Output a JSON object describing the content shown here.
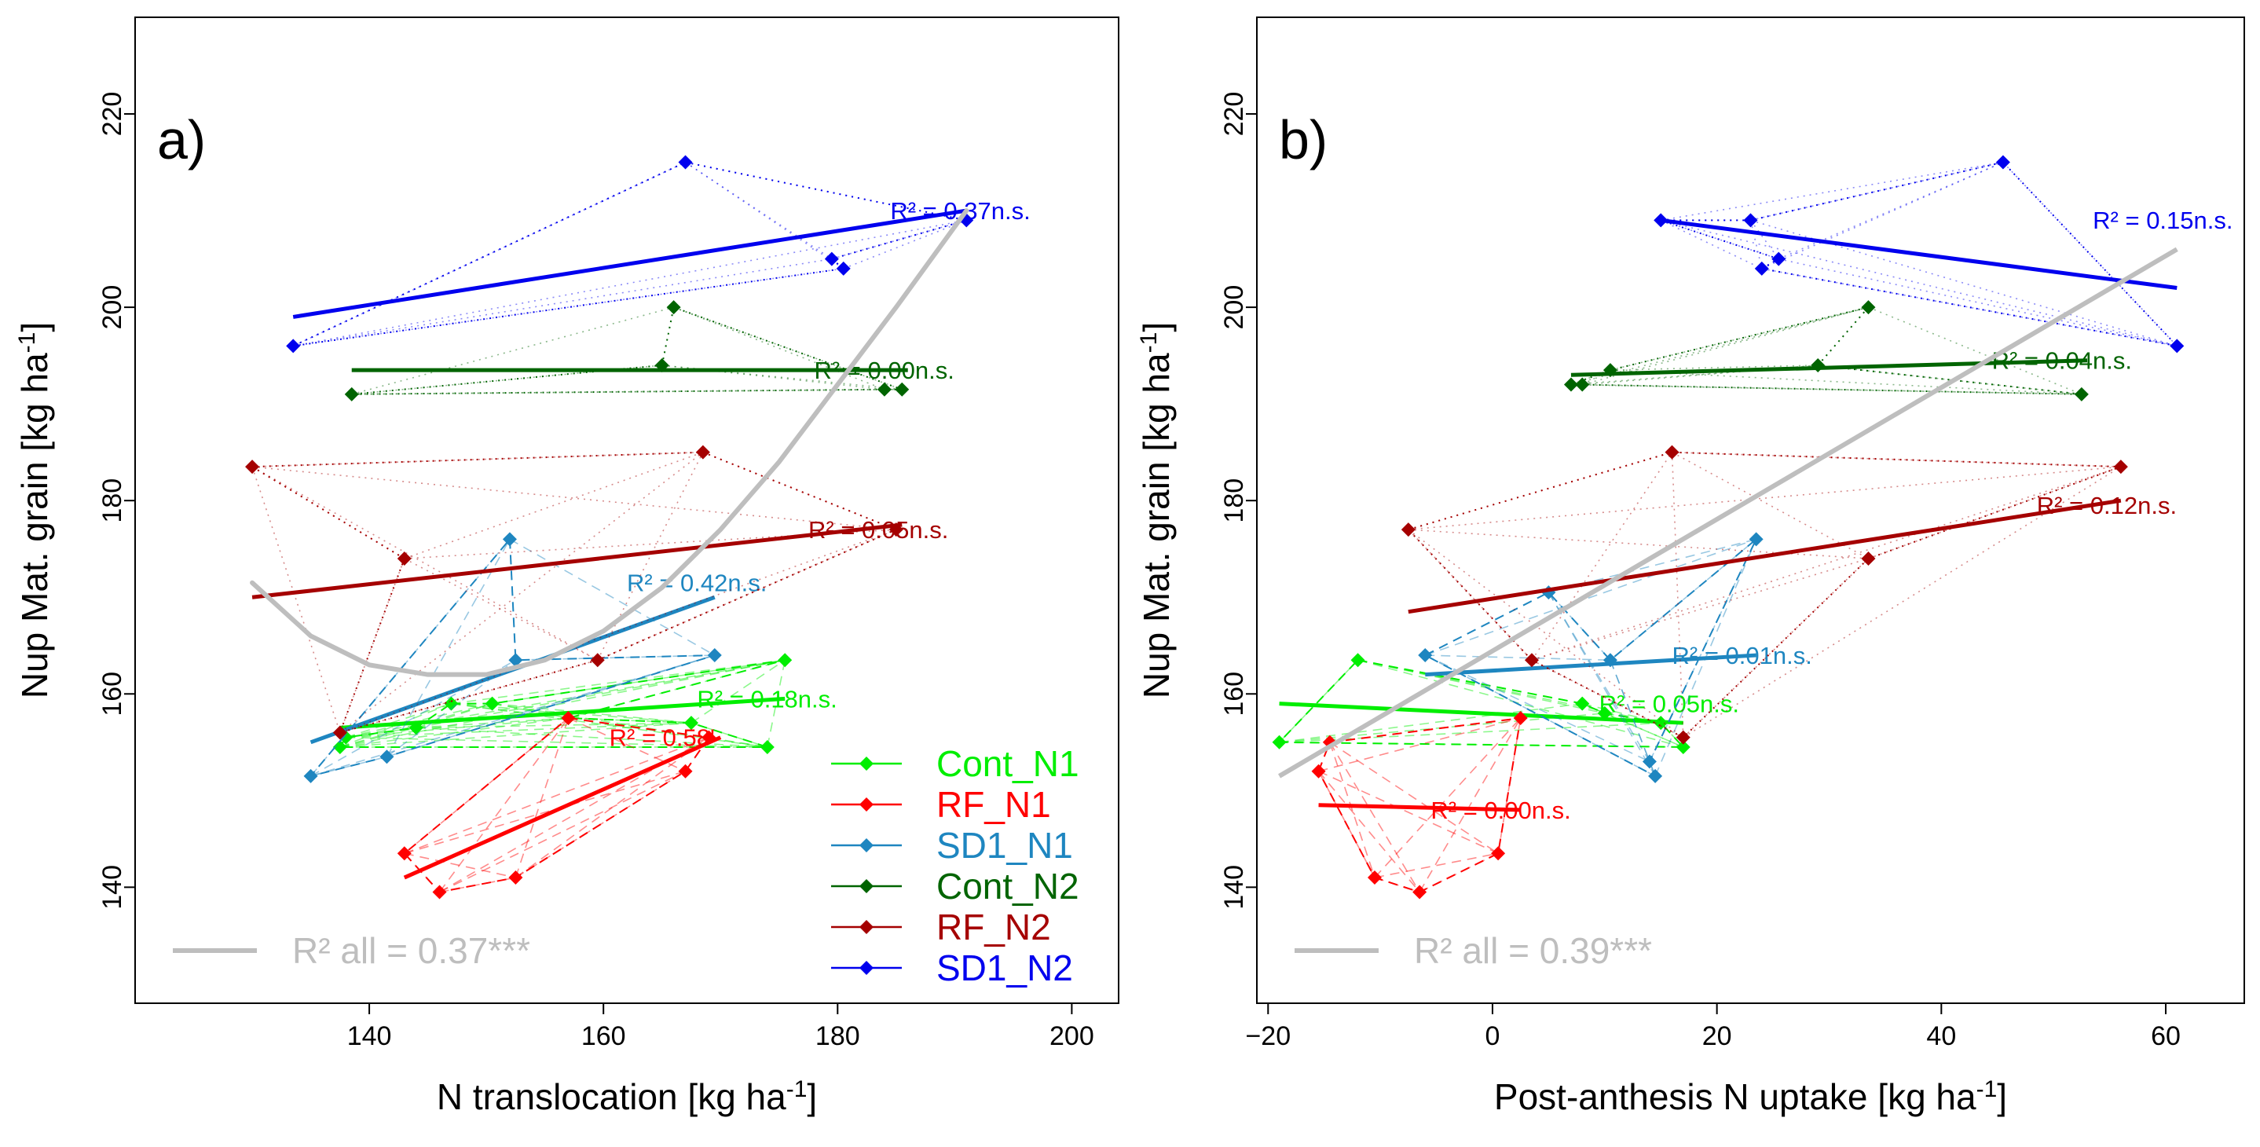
{
  "chart_data": [
    {
      "type": "scatter",
      "panel_label": "a)",
      "xlabel": "N translocation [kg ha",
      "xlabel_sup": "-1",
      "xlabel_end": "]",
      "ylabel": "Nup Mat. grain [kg ha",
      "ylabel_sup": "-1",
      "ylabel_end": "]",
      "xlim": [
        120,
        204
      ],
      "ylim": [
        128,
        230
      ],
      "xticks": [
        140,
        160,
        180,
        200
      ],
      "xtick_labels": [
        "140",
        "160",
        "180",
        "200"
      ],
      "yticks": [
        140,
        160,
        180,
        200,
        220
      ],
      "ytick_labels": [
        "140",
        "160",
        "180",
        "200",
        "220"
      ],
      "legend_position": "bottom-right",
      "overall": {
        "label": "R² all = 0.37***",
        "color": "#bebebe",
        "curve": [
          [
            130,
            171.5
          ],
          [
            135,
            166
          ],
          [
            140,
            163
          ],
          [
            145,
            162
          ],
          [
            150,
            162
          ],
          [
            155,
            163.5
          ],
          [
            160,
            166.5
          ],
          [
            165,
            171
          ],
          [
            170,
            177
          ],
          [
            175,
            184
          ],
          [
            180,
            192
          ],
          [
            185,
            200
          ],
          [
            191,
            210
          ]
        ]
      },
      "series": [
        {
          "name": "Cont_N1",
          "color": "#00ee00",
          "style": "dashed",
          "points": [
            [
              137.5,
              154.5
            ],
            [
              138,
              155.5
            ],
            [
              144,
              156.5
            ],
            [
              147,
              159
            ],
            [
              150.5,
              159
            ],
            [
              157,
              157.5
            ],
            [
              167.5,
              157
            ],
            [
              174,
              154.5
            ],
            [
              175.5,
              163.5
            ]
          ],
          "fit": [
            [
              137.5,
              156.5
            ],
            [
              175.5,
              159.5
            ]
          ],
          "r2": "R² = 0.18n.s.",
          "r2_at": [
            168,
            159.5
          ]
        },
        {
          "name": "RF_N1",
          "color": "#ff0000",
          "style": "dashed",
          "points": [
            [
              143,
              143.5
            ],
            [
              146,
              139.5
            ],
            [
              152.5,
              141
            ],
            [
              157,
              157.5
            ],
            [
              167,
              152
            ],
            [
              169,
              155.5
            ]
          ],
          "fit": [
            [
              143,
              141
            ],
            [
              170,
              155.5
            ]
          ],
          "r2": "R² = 0.58'",
          "r2_at": [
            160.5,
            155.5
          ]
        },
        {
          "name": "SD1_N1",
          "color": "#1e86c0",
          "style": "dashed",
          "points": [
            [
              135,
              151.5
            ],
            [
              141.5,
              153.5
            ],
            [
              152,
              176
            ],
            [
              152.5,
              163.5
            ],
            [
              169.5,
              164
            ]
          ],
          "fit": [
            [
              135,
              155
            ],
            [
              169.5,
              170
            ]
          ],
          "r2": "R² = 0.42n.s.",
          "r2_at": [
            162,
            171.5
          ]
        },
        {
          "name": "Cont_N2",
          "color": "#006400",
          "style": "dotted",
          "points": [
            [
              138.5,
              191
            ],
            [
              165,
              194
            ],
            [
              166,
              200
            ],
            [
              184,
              191.5
            ],
            [
              185.5,
              191.5
            ]
          ],
          "fit": [
            [
              138.5,
              193.5
            ],
            [
              186,
              193.5
            ]
          ],
          "r2": "R² = 0.00n.s.",
          "r2_at": [
            178,
            193.5
          ]
        },
        {
          "name": "RF_N2",
          "color": "#a50000",
          "style": "dotted",
          "points": [
            [
              130,
              183.5
            ],
            [
              137.5,
              156
            ],
            [
              143,
              174
            ],
            [
              159.5,
              163.5
            ],
            [
              168.5,
              185
            ],
            [
              185,
              177
            ]
          ],
          "fit": [
            [
              130,
              170
            ],
            [
              185.5,
              177.5
            ]
          ],
          "r2": "R² = 0.05n.s.",
          "r2_at": [
            177.5,
            177
          ]
        },
        {
          "name": "SD1_N2",
          "color": "#0000ee",
          "style": "dotted",
          "points": [
            [
              133.5,
              196
            ],
            [
              167,
              215
            ],
            [
              179.5,
              205
            ],
            [
              180.5,
              204
            ],
            [
              191,
              209
            ]
          ],
          "fit": [
            [
              133.5,
              199
            ],
            [
              191,
              210
            ]
          ],
          "r2": "R² = 0.37n.s.",
          "r2_at": [
            184.5,
            210
          ]
        }
      ]
    },
    {
      "type": "scatter",
      "panel_label": "b)",
      "xlabel": "Post-anthesis N uptake [kg ha",
      "xlabel_sup": "-1",
      "xlabel_end": "]",
      "ylabel": "Nup Mat. grain [kg ha",
      "ylabel_sup": "-1",
      "ylabel_end": "]",
      "xlim": [
        -21,
        67
      ],
      "ylim": [
        128,
        230
      ],
      "xticks": [
        -20,
        0,
        20,
        40,
        60
      ],
      "xtick_labels": [
        "−20",
        "0",
        "20",
        "40",
        "60"
      ],
      "yticks": [
        140,
        160,
        180,
        200,
        220
      ],
      "ytick_labels": [
        "140",
        "160",
        "180",
        "200",
        "220"
      ],
      "overall": {
        "label": "R² all = 0.39***",
        "color": "#bebebe",
        "line": [
          [
            -19,
            151.5
          ],
          [
            61,
            206
          ]
        ]
      },
      "series": [
        {
          "name": "Cont_N1",
          "color": "#00ee00",
          "style": "dashed",
          "points": [
            [
              -19,
              155
            ],
            [
              -12,
              163.5
            ],
            [
              8,
              159
            ],
            [
              10,
              158
            ],
            [
              15,
              157
            ],
            [
              17,
              154.5
            ]
          ],
          "fit": [
            [
              -19,
              159
            ],
            [
              17,
              157
            ]
          ],
          "r2": "R² = 0.05n.s.",
          "r2_at": [
            9.5,
            159
          ]
        },
        {
          "name": "RF_N1",
          "color": "#ff0000",
          "style": "dashed",
          "points": [
            [
              -15.5,
              152
            ],
            [
              -14.5,
              155
            ],
            [
              -10.5,
              141
            ],
            [
              -6.5,
              139.5
            ],
            [
              0.5,
              143.5
            ],
            [
              2.5,
              157.5
            ]
          ],
          "fit": [
            [
              -15.5,
              148.5
            ],
            [
              2.5,
              148
            ]
          ],
          "r2": "R² = 0.00n.s.",
          "r2_at": [
            -5.5,
            148
          ]
        },
        {
          "name": "SD1_N1",
          "color": "#1e86c0",
          "style": "dashed",
          "points": [
            [
              -6,
              164
            ],
            [
              5,
              170.5
            ],
            [
              10.5,
              163.5
            ],
            [
              14,
              153
            ],
            [
              14.5,
              151.5
            ],
            [
              23.5,
              176
            ]
          ],
          "fit": [
            [
              -6,
              162
            ],
            [
              23.5,
              164
            ]
          ],
          "r2": "R² = 0.01n.s.",
          "r2_at": [
            16,
            164
          ]
        },
        {
          "name": "Cont_N2",
          "color": "#006400",
          "style": "dotted",
          "points": [
            [
              7,
              192
            ],
            [
              8,
              192
            ],
            [
              10.5,
              193.5
            ],
            [
              29,
              194
            ],
            [
              33.5,
              200
            ],
            [
              52.5,
              191
            ]
          ],
          "fit": [
            [
              7,
              193
            ],
            [
              53,
              194.5
            ]
          ],
          "r2": "R² = 0.04n.s.",
          "r2_at": [
            44.5,
            194.5
          ]
        },
        {
          "name": "RF_N2",
          "color": "#a50000",
          "style": "dotted",
          "points": [
            [
              -7.5,
              177
            ],
            [
              3.5,
              163.5
            ],
            [
              16,
              185
            ],
            [
              17,
              155.5
            ],
            [
              33.5,
              174
            ],
            [
              56,
              183.5
            ]
          ],
          "fit": [
            [
              -7.5,
              168.5
            ],
            [
              56,
              180
            ]
          ],
          "r2": "R² = 0.12n.s.",
          "r2_at": [
            48.5,
            179.5
          ]
        },
        {
          "name": "SD1_N2",
          "color": "#0000ee",
          "style": "dotted",
          "points": [
            [
              15,
              209
            ],
            [
              23,
              209
            ],
            [
              24,
              204
            ],
            [
              25.5,
              205
            ],
            [
              45.5,
              215
            ],
            [
              61,
              196
            ]
          ],
          "fit": [
            [
              15,
              209
            ],
            [
              61,
              202
            ]
          ],
          "r2": "R² = 0.15n.s.",
          "r2_at": [
            53.5,
            209
          ]
        }
      ]
    }
  ]
}
